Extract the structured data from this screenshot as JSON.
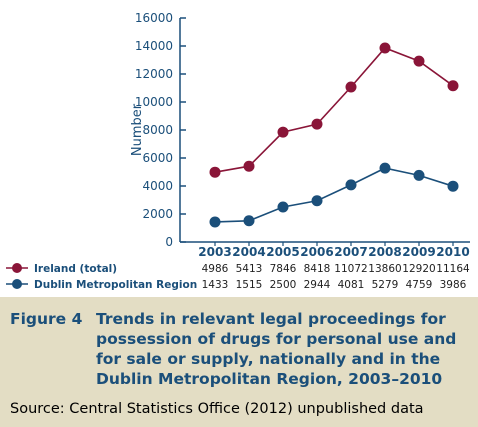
{
  "chart_data": {
    "type": "line",
    "ylabel": "Number",
    "ylim": [
      0,
      16000
    ],
    "yticks": [
      0,
      2000,
      4000,
      6000,
      8000,
      10000,
      12000,
      14000,
      16000
    ],
    "categories": [
      "2003",
      "2004",
      "2005",
      "2006",
      "2007",
      "2008",
      "2009",
      "2010"
    ],
    "series": [
      {
        "name": "Ireland (total)",
        "color": "#8a1538",
        "values": [
          4986,
          5413,
          7846,
          8418,
          11072,
          13860,
          12920,
          11164
        ]
      },
      {
        "name": "Dublin Metropolitan Region",
        "color": "#1b4f7a",
        "values": [
          1433,
          1515,
          2500,
          2944,
          4081,
          5279,
          4759,
          3986
        ]
      }
    ],
    "grid": false,
    "legend": "table-below-axis"
  },
  "caption": {
    "label": "Figure 4",
    "text": "Trends in relevant legal proceedings for possession of drugs for personal use and for sale or supply, nationally and in the Dublin Metropolitan Region, 2003–2010",
    "source": "Source: Central Statistics Office (2012) unpublished data"
  },
  "colors": {
    "axis": "#1b4f7a",
    "caption_background": "#e3ddc4",
    "caption_text": "#1b4f7a"
  }
}
